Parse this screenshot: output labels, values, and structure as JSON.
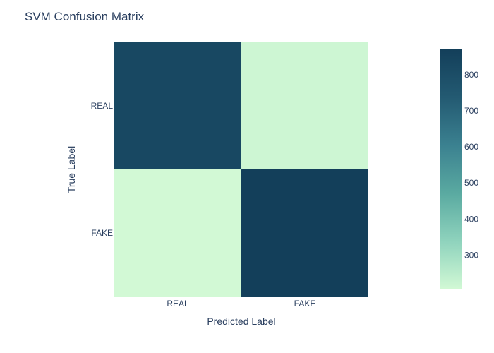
{
  "chart_data": {
    "type": "heatmap",
    "title": "SVM Confusion Matrix",
    "xlabel": "Predicted Label",
    "ylabel": "True Label",
    "x_categories": [
      "REAL",
      "FAKE"
    ],
    "y_categories": [
      "REAL",
      "FAKE"
    ],
    "values": [
      [
        825,
        215
      ],
      [
        205,
        870
      ]
    ],
    "colorscale": [
      "#d2f9d5",
      "#8fd3bd",
      "#5aaaa1",
      "#3b8190",
      "#235a72",
      "#133f5a"
    ],
    "zrange": [
      205,
      870
    ],
    "colorbar_ticks": [
      300,
      400,
      500,
      600,
      700,
      800
    ]
  }
}
